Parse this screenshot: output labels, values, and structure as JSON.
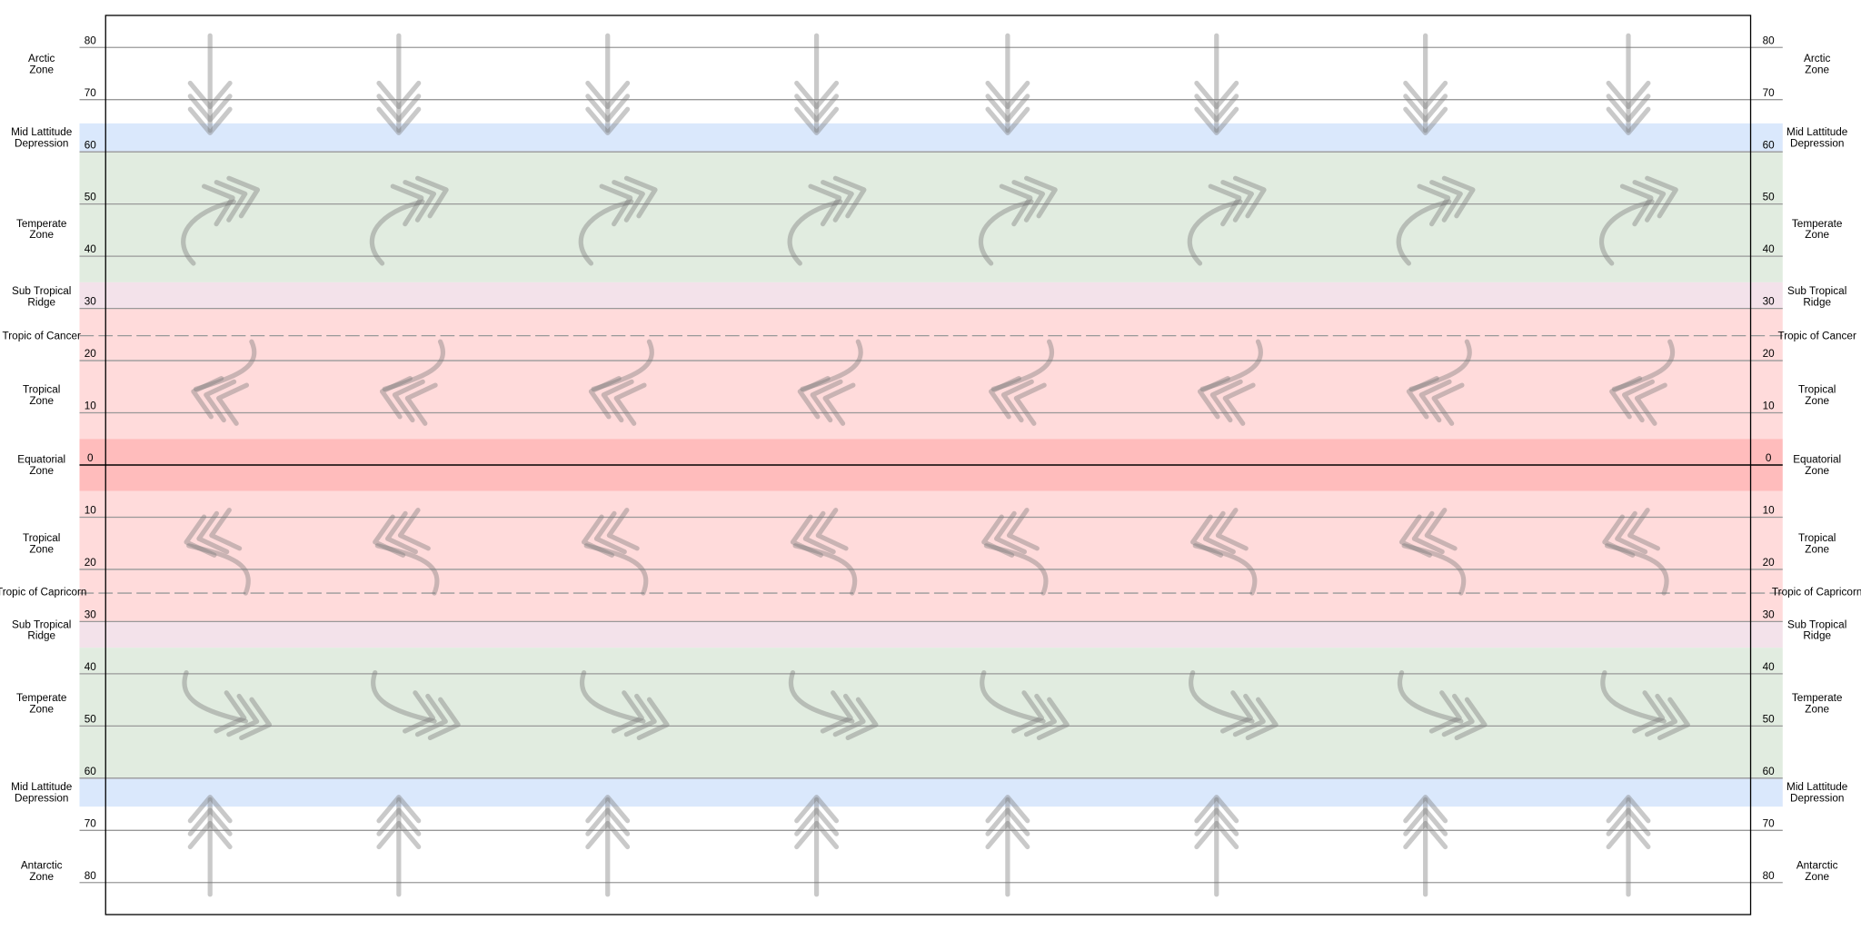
{
  "latitude_ticks": [
    "80",
    "70",
    "60",
    "50",
    "40",
    "30",
    "20",
    "10",
    "0",
    "10",
    "20",
    "30",
    "40",
    "50",
    "60",
    "70",
    "80"
  ],
  "zones": [
    {
      "lines": [
        "Arctic",
        "Zone"
      ]
    },
    {
      "lines": [
        "Mid Lattitude",
        "Depression"
      ]
    },
    {
      "lines": [
        "Temperate",
        "Zone"
      ]
    },
    {
      "lines": [
        "Sub Tropical",
        "Ridge"
      ]
    },
    {
      "lines": [
        "Tropic of Cancer"
      ]
    },
    {
      "lines": [
        "Tropical",
        "Zone"
      ]
    },
    {
      "lines": [
        "Equatorial",
        "Zone"
      ]
    },
    {
      "lines": [
        "Tropical",
        "Zone"
      ]
    },
    {
      "lines": [
        "Tropic of Capricorn"
      ]
    },
    {
      "lines": [
        "Sub Tropical",
        "Ridge"
      ]
    },
    {
      "lines": [
        "Temperate",
        "Zone"
      ]
    },
    {
      "lines": [
        "Mid Lattitude",
        "Depression"
      ]
    },
    {
      "lines": [
        "Antarctic",
        "Zone"
      ]
    }
  ]
}
